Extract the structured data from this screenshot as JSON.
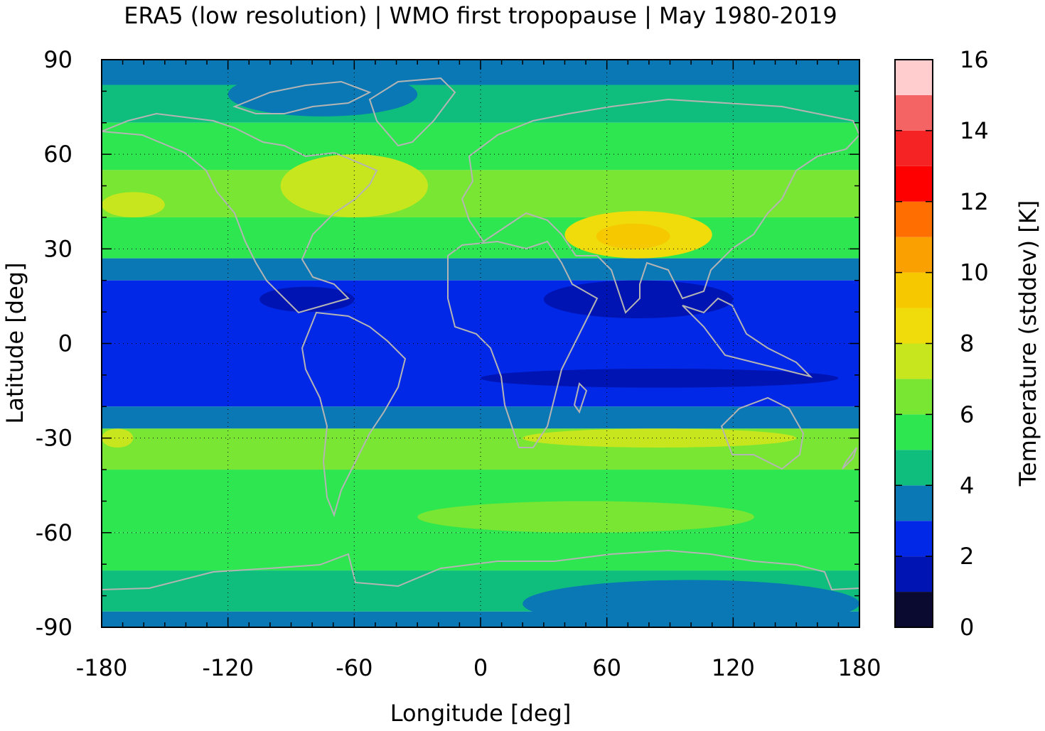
{
  "chart_data": {
    "type": "heatmap",
    "title": "ERA5 (low resolution) | WMO first tropopause | May 1980-2019",
    "xlabel": "Longitude [deg]",
    "ylabel": "Latitude [deg]",
    "colorbar_label": "Temperature (stddev) [K]",
    "xlim": [
      -180,
      180
    ],
    "ylim": [
      -90,
      90
    ],
    "xticks": [
      -180,
      -120,
      -60,
      0,
      60,
      120,
      180
    ],
    "yticks": [
      90,
      60,
      30,
      0,
      -30,
      -60,
      -90
    ],
    "colorbar_ticks": [
      0,
      2,
      4,
      6,
      8,
      10,
      12,
      14,
      16
    ],
    "colorbar_range": [
      0,
      16
    ],
    "grid": true,
    "colorbar_levels": [
      {
        "from": 0,
        "to": 1,
        "color": "#0a0a30"
      },
      {
        "from": 1,
        "to": 2,
        "color": "#0014b4"
      },
      {
        "from": 2,
        "to": 3,
        "color": "#0028e6"
      },
      {
        "from": 3,
        "to": 4,
        "color": "#0a78b4"
      },
      {
        "from": 4,
        "to": 5,
        "color": "#0fbe7d"
      },
      {
        "from": 5,
        "to": 6,
        "color": "#2ee650"
      },
      {
        "from": 6,
        "to": 7,
        "color": "#78e632"
      },
      {
        "from": 7,
        "to": 8,
        "color": "#c8e61e"
      },
      {
        "from": 8,
        "to": 9,
        "color": "#f0dc0a"
      },
      {
        "from": 9,
        "to": 10,
        "color": "#f5c800"
      },
      {
        "from": 10,
        "to": 11,
        "color": "#faa000"
      },
      {
        "from": 11,
        "to": 12,
        "color": "#ff6e00"
      },
      {
        "from": 12,
        "to": 13,
        "color": "#ff0000"
      },
      {
        "from": 13,
        "to": 14,
        "color": "#f52323"
      },
      {
        "from": 14,
        "to": 15,
        "color": "#f56464"
      },
      {
        "from": 15,
        "to": 16,
        "color": "#ffcdcd"
      }
    ],
    "zonal_bands": [
      {
        "lat_range": [
          82,
          90
        ],
        "value": 3.5
      },
      {
        "lat_range": [
          70,
          82
        ],
        "value": 4.5
      },
      {
        "lat_range": [
          55,
          70
        ],
        "value": 5.5
      },
      {
        "lat_range": [
          40,
          55
        ],
        "value": 6.5
      },
      {
        "lat_range": [
          27,
          40
        ],
        "value": 5.5
      },
      {
        "lat_range": [
          20,
          27
        ],
        "value": 3.5
      },
      {
        "lat_range": [
          -20,
          20
        ],
        "value": 2.5
      },
      {
        "lat_range": [
          -27,
          -20
        ],
        "value": 3.5
      },
      {
        "lat_range": [
          -40,
          -27
        ],
        "value": 6.5
      },
      {
        "lat_range": [
          -60,
          -40
        ],
        "value": 5.5
      },
      {
        "lat_range": [
          -72,
          -60
        ],
        "value": 5.5
      },
      {
        "lat_range": [
          -85,
          -72
        ],
        "value": 4.5
      },
      {
        "lat_range": [
          -90,
          -85
        ],
        "value": 3.5
      }
    ],
    "regions": [
      {
        "name": "tibetan-plateau-max",
        "lon_range": [
          40,
          110
        ],
        "lat_range": [
          27,
          42
        ],
        "value": 8.5
      },
      {
        "name": "tibetan-plateau-core",
        "lon_range": [
          55,
          90
        ],
        "lat_range": [
          30,
          38
        ],
        "value": 9.5
      },
      {
        "name": "north-pacific-max",
        "lon_range": [
          -180,
          -150
        ],
        "lat_range": [
          40,
          48
        ],
        "value": 7.5
      },
      {
        "name": "north-america-high",
        "lon_range": [
          -95,
          -25
        ],
        "lat_range": [
          40,
          60
        ],
        "value": 7.0
      },
      {
        "name": "arctic-canada",
        "lon_range": [
          -120,
          -30
        ],
        "lat_range": [
          72,
          86
        ],
        "value": 3.5
      },
      {
        "name": "tropical-core-a",
        "lon_range": [
          30,
          120
        ],
        "lat_range": [
          8,
          20
        ],
        "value": 1.5
      },
      {
        "name": "tropical-core-b",
        "lon_range": [
          0,
          170
        ],
        "lat_range": [
          -14,
          -8
        ],
        "value": 1.5
      },
      {
        "name": "tropical-core-c",
        "lon_range": [
          -105,
          -60
        ],
        "lat_range": [
          10,
          18
        ],
        "value": 1.5
      },
      {
        "name": "south-subtropical-max",
        "lon_range": [
          20,
          150
        ],
        "lat_range": [
          -33,
          -27
        ],
        "value": 7.5
      },
      {
        "name": "south-pacific-max",
        "lon_range": [
          -180,
          -165
        ],
        "lat_range": [
          -33,
          -27
        ],
        "value": 7.5
      },
      {
        "name": "antarctic-east",
        "lon_range": [
          20,
          180
        ],
        "lat_range": [
          -90,
          -75
        ],
        "value": 3.5
      },
      {
        "name": "southern-ocean-band",
        "lon_range": [
          -30,
          130
        ],
        "lat_range": [
          -60,
          -50
        ],
        "value": 6.5
      }
    ]
  }
}
